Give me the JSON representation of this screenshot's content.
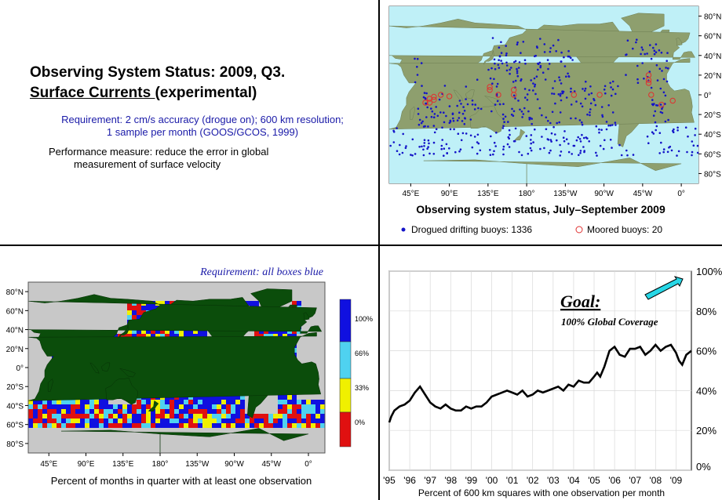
{
  "slide": {
    "title_line1": "Observing System Status:  2009, Q3.",
    "title_line2_underlined": "Surface Currents ",
    "title_line2_rest": "(experimental)",
    "requirement_line1": "Requirement: 2 cm/s accuracy (drogue on); 600 km resolution;",
    "requirement_line2": "1 sample per month (GOOS/GCOS, 1999)",
    "performance_line1": "Performance measure: reduce the error in global",
    "performance_line2": "measurement of surface velocity"
  },
  "colors": {
    "ocean": "#bff0f7",
    "land": "#8e9f6e",
    "buoy": "#1414c8",
    "box_100": "#1010e0",
    "box_66": "#4fd2f0",
    "box_33": "#f0f000",
    "box_0": "#e01010",
    "box_land": "#0b4d0b",
    "box_nodata": "#c8c8c8",
    "arrow": "#27d7e6"
  },
  "buoy_map": {
    "title": "Observing system status, July–September 2009",
    "lat_labels": [
      "80°N",
      "60°N",
      "40°N",
      "20°N",
      "0°",
      "20°S",
      "40°S",
      "60°S",
      "80°S"
    ],
    "lon_labels": [
      "45°E",
      "90°E",
      "135°E",
      "180°",
      "135°W",
      "90°W",
      "45°W",
      "0°"
    ],
    "legend_drifting": "Drogued drifting buoys: 1336",
    "legend_moored": "Moored buoys: 20"
  },
  "coverage_map": {
    "header": "Requirement: all boxes blue",
    "lat_labels": [
      "80°N",
      "60°N",
      "40°N",
      "20°N",
      "0°",
      "20°S",
      "40°S",
      "60°S",
      "80°S"
    ],
    "lon_labels": [
      "45°E",
      "90°E",
      "135°E",
      "180°",
      "135°W",
      "90°W",
      "45°W",
      "0°"
    ],
    "colorbar_labels": [
      "100%",
      "66%",
      "33%",
      "0%"
    ],
    "caption": "Percent of months in quarter with at least one observation"
  },
  "chart_data": {
    "type": "line",
    "goal_label": "Goal:",
    "goal_sub": "100% Global Coverage",
    "xlabel": "Percent of 600 km squares with one observation per month",
    "ylabel": "",
    "x_tick_labels": [
      "'95",
      "'96",
      "'97",
      "'98",
      "'99",
      "'00",
      "'01",
      "'02",
      "'03",
      "'04",
      "'05",
      "'06",
      "'07",
      "'08",
      "'09"
    ],
    "y_tick_labels": [
      "0%",
      "20%",
      "40%",
      "60%",
      "80%",
      "100%"
    ],
    "xlim": [
      1995,
      2009.75
    ],
    "ylim": [
      0,
      100
    ],
    "x": [
      1995.0,
      1995.1,
      1995.25,
      1995.5,
      1995.75,
      1996.0,
      1996.25,
      1996.5,
      1996.75,
      1997.0,
      1997.25,
      1997.5,
      1997.75,
      1998.0,
      1998.25,
      1998.5,
      1998.75,
      1999.0,
      1999.25,
      1999.5,
      1999.75,
      2000.0,
      2000.25,
      2000.5,
      2000.75,
      2001.0,
      2001.25,
      2001.5,
      2001.75,
      2002.0,
      2002.25,
      2002.5,
      2002.75,
      2003.0,
      2003.25,
      2003.5,
      2003.75,
      2004.0,
      2004.25,
      2004.5,
      2004.75,
      2005.0,
      2005.15,
      2005.3,
      2005.5,
      2005.75,
      2006.0,
      2006.25,
      2006.5,
      2006.75,
      2007.0,
      2007.25,
      2007.5,
      2007.75,
      2008.0,
      2008.25,
      2008.5,
      2008.75,
      2009.0,
      2009.15,
      2009.3,
      2009.5,
      2009.75
    ],
    "values": [
      24,
      27,
      30,
      32,
      33,
      35,
      39,
      42,
      38,
      34,
      32,
      31,
      33,
      31,
      30,
      30,
      32,
      31,
      32,
      32,
      34,
      37,
      38,
      39,
      40,
      39,
      38,
      40,
      37,
      38,
      40,
      39,
      40,
      41,
      42,
      40,
      43,
      42,
      45,
      44,
      44,
      47,
      49,
      47,
      52,
      60,
      62,
      58,
      57,
      61,
      61,
      62,
      58,
      60,
      63,
      60,
      62,
      63,
      59,
      55,
      53,
      58,
      60
    ]
  }
}
